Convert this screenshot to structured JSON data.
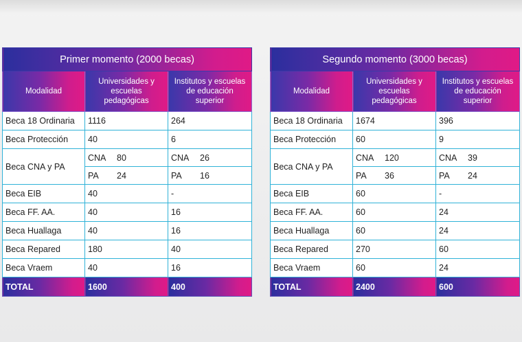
{
  "left": {
    "title": "Primer momento (2000 becas)",
    "headers": [
      "Modalidad",
      "Universidades y escuelas pedagógicas",
      "Institutos y escuelas de educación superior"
    ],
    "rows": [
      {
        "label": "Beca 18 Ordinaria",
        "univ": "1116",
        "inst": "264"
      },
      {
        "label": "Beca Protección",
        "univ": "40",
        "inst": "6"
      },
      {
        "label": "Beca CNA y PA",
        "cna_label": "CNA",
        "pa_label": "PA",
        "univ_cna": "80",
        "univ_pa": "24",
        "inst_cna": "26",
        "inst_pa": "16"
      },
      {
        "label": "Beca EIB",
        "univ": "40",
        "inst": "-"
      },
      {
        "label": "Beca FF. AA.",
        "univ": "40",
        "inst": "16"
      },
      {
        "label": "Beca Huallaga",
        "univ": "40",
        "inst": "16"
      },
      {
        "label": "Beca Repared",
        "univ": "180",
        "inst": "40"
      },
      {
        "label": "Beca Vraem",
        "univ": "40",
        "inst": "16"
      }
    ],
    "total": {
      "label": "TOTAL",
      "univ": "1600",
      "inst": "400"
    }
  },
  "right": {
    "title": "Segundo momento (3000 becas)",
    "headers": [
      "Modalidad",
      "Universidades y escuelas pedagógicas",
      "Institutos y escuelas de educación superior"
    ],
    "rows": [
      {
        "label": "Beca 18 Ordinaria",
        "univ": "1674",
        "inst": "396"
      },
      {
        "label": "Beca Protección",
        "univ": "60",
        "inst": "9"
      },
      {
        "label": "Beca CNA y PA",
        "cna_label": "CNA",
        "pa_label": "PA",
        "univ_cna": "120",
        "univ_pa": "36",
        "inst_cna": "39",
        "inst_pa": "24"
      },
      {
        "label": "Beca EIB",
        "univ": "60",
        "inst": "-"
      },
      {
        "label": "Beca FF. AA.",
        "univ": "60",
        "inst": "24"
      },
      {
        "label": "Beca Huallaga",
        "univ": "60",
        "inst": "24"
      },
      {
        "label": "Beca Repared",
        "univ": "270",
        "inst": "60"
      },
      {
        "label": "Beca Vraem",
        "univ": "60",
        "inst": "24"
      }
    ],
    "total": {
      "label": "TOTAL",
      "univ": "2400",
      "inst": "600"
    }
  },
  "colors": {
    "header_start": "#2b2f9e",
    "header_mid": "#6a2aa3",
    "header_end": "#e01a86",
    "grid_line": "#2fb2d8"
  }
}
